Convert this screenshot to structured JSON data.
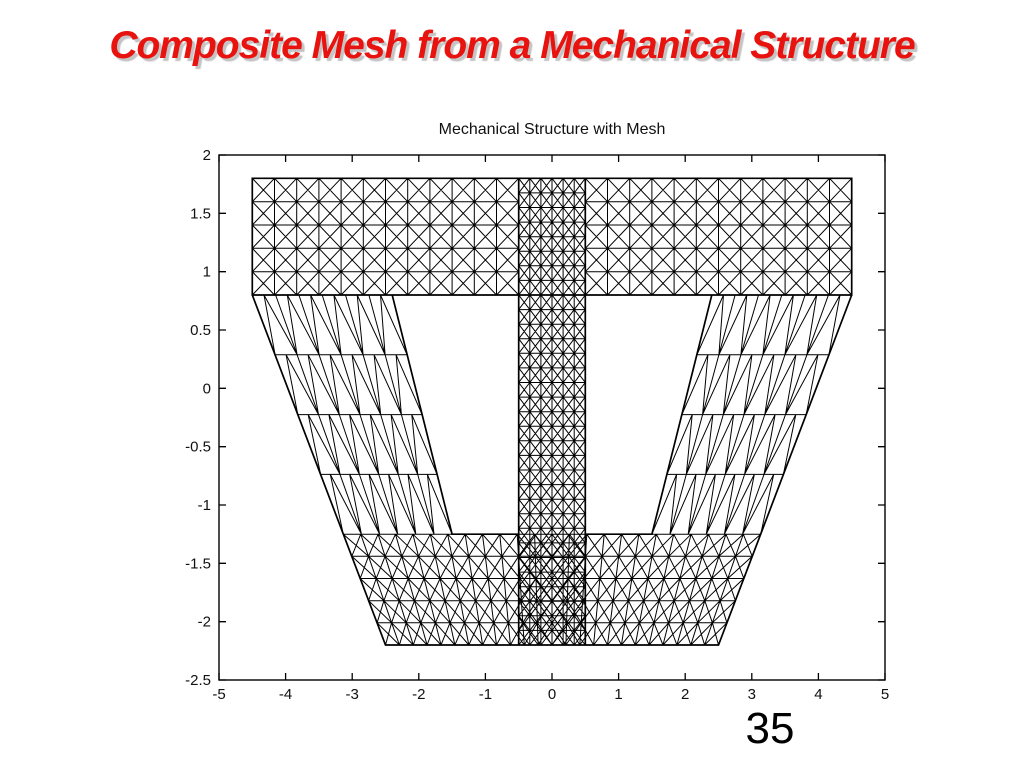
{
  "slide": {
    "title": "Composite Mesh from a Mechanical Structure",
    "title_color": "#e8120e",
    "page_number": "35",
    "background": "#ffffff"
  },
  "chart_data": {
    "type": "mesh",
    "title": "Mechanical Structure with Mesh",
    "xlabel": "",
    "ylabel": "",
    "xlim": [
      -5,
      5
    ],
    "ylim": [
      -2.5,
      2
    ],
    "x_tick_labels": [
      "-5",
      "-4",
      "-3",
      "-2",
      "-1",
      "0",
      "1",
      "2",
      "3",
      "4",
      "5"
    ],
    "y_tick_labels": [
      "2",
      "1.5",
      "1",
      "0.5",
      "0",
      "-0.5",
      "-1",
      "-1.5",
      "-2",
      "-2.5"
    ],
    "grid": false,
    "frame": "full box with inward tick marks on all four sides",
    "line_color": "#000000",
    "structure": {
      "description": "Finite-element composite mesh of a mechanical structure: a wide top flange and a central vertical web (fine crossed-quad mesh) supported by two slanted legs (triangular mesh) joined by a trapezoidal base block (crossed-quad mesh), leaving two white trapezoidal holes.",
      "flange": {
        "x_range": [
          -4.5,
          4.5
        ],
        "y_range": [
          0.8,
          1.8
        ],
        "cols_per_side": 12,
        "rows": 5,
        "pattern": "quad-x"
      },
      "web": {
        "x_range": [
          -0.5,
          0.5
        ],
        "y_range": [
          -2.2,
          1.8
        ],
        "cols": 6,
        "rows": 32,
        "pattern": "quad-x"
      },
      "left_leg": {
        "outer_edge": [
          [
            -4.5,
            0.8
          ],
          [
            -2.5,
            -2.2
          ]
        ],
        "inner_edge": [
          [
            -2.4,
            0.8
          ],
          [
            -1.5,
            -1.25
          ]
        ],
        "cols": 6,
        "rows": 4,
        "pattern": "triangle-spikes"
      },
      "right_leg": {
        "outer_edge": [
          [
            4.5,
            0.8
          ],
          [
            2.5,
            -2.2
          ]
        ],
        "inner_edge": [
          [
            2.4,
            0.8
          ],
          [
            1.5,
            -1.25
          ]
        ],
        "cols": 6,
        "rows": 4,
        "pattern": "triangle-spikes"
      },
      "base": {
        "y_range": [
          -2.2,
          -1.25
        ],
        "half_width_top": 3.133,
        "half_width_bottom": 2.5,
        "rows": 5,
        "cols": 24,
        "pattern": "quad-x"
      },
      "holes": [
        {
          "corners": [
            [
              -2.4,
              0.8
            ],
            [
              -0.5,
              0.8
            ],
            [
              -0.5,
              -1.25
            ],
            [
              -1.5,
              -1.25
            ]
          ]
        },
        {
          "corners": [
            [
              0.5,
              0.8
            ],
            [
              2.4,
              0.8
            ],
            [
              1.5,
              -1.25
            ],
            [
              0.5,
              -1.25
            ]
          ]
        }
      ]
    }
  }
}
